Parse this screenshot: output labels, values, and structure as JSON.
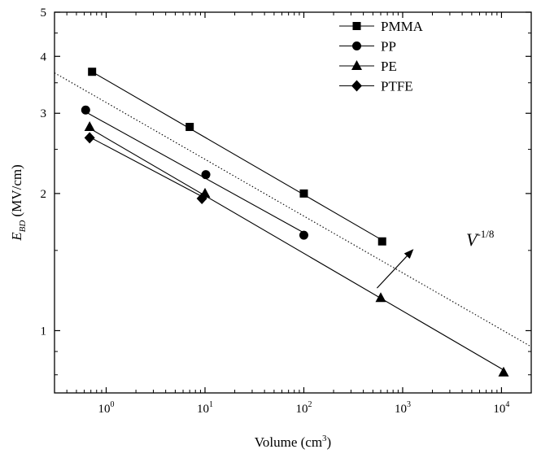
{
  "chart_data": {
    "type": "scatter",
    "xlabel": "Volume (cm³)",
    "xlabel_base": "Volume (cm",
    "xlabel_sup": "3",
    "xlabel_close": ")",
    "ylabel_symbol": "E",
    "ylabel_subscript": "BD",
    "ylabel_units": "(MV/cm)",
    "x_scale": "log",
    "y_scale": "log",
    "xlim": [
      0.3,
      20000
    ],
    "ylim": [
      0.73,
      5
    ],
    "x_ticks": [
      {
        "value": 1,
        "base": "10",
        "exp": "0"
      },
      {
        "value": 10,
        "base": "10",
        "exp": "1"
      },
      {
        "value": 100,
        "base": "10",
        "exp": "2"
      },
      {
        "value": 1000,
        "base": "10",
        "exp": "3"
      },
      {
        "value": 10000,
        "base": "10",
        "exp": "4"
      }
    ],
    "y_ticks": [
      {
        "value": 1,
        "label": "1"
      },
      {
        "value": 2,
        "label": "2"
      },
      {
        "value": 3,
        "label": "3"
      },
      {
        "value": 4,
        "label": "4"
      },
      {
        "value": 5,
        "label": "5"
      }
    ],
    "legend_position": "top-right",
    "series": [
      {
        "name": "PMMA",
        "marker": "square",
        "x": [
          0.72,
          7,
          100,
          620
        ],
        "y": [
          3.7,
          2.8,
          2.0,
          1.57
        ],
        "fit": [
          [
            0.72,
            3.7
          ],
          [
            620,
            1.58
          ]
        ]
      },
      {
        "name": "PP",
        "marker": "circle",
        "x": [
          0.62,
          10.2,
          100
        ],
        "y": [
          3.05,
          2.2,
          1.62
        ],
        "fit": [
          [
            0.62,
            3.02
          ],
          [
            100,
            1.64
          ]
        ]
      },
      {
        "name": "PE",
        "marker": "triangle",
        "x": [
          0.68,
          10,
          600,
          10500
        ],
        "y": [
          2.8,
          2.0,
          1.18,
          0.81
        ],
        "fit": [
          [
            0.68,
            2.78
          ],
          [
            10500,
            0.82
          ]
        ]
      },
      {
        "name": "PTFE",
        "marker": "diamond",
        "x": [
          0.68,
          9.3
        ],
        "y": [
          2.65,
          1.95
        ],
        "fit": [
          [
            0.68,
            2.66
          ],
          [
            9.3,
            1.97
          ]
        ]
      }
    ],
    "reference_line": {
      "style": "dotted",
      "points": [
        [
          0.3,
          3.68
        ],
        [
          20000,
          0.922
        ]
      ]
    },
    "annotation": {
      "base": "V",
      "exp": "-1/8",
      "arrow_from": [
        550,
        1.24
      ],
      "arrow_to": [
        1250,
        1.5
      ]
    },
    "grid": false
  }
}
